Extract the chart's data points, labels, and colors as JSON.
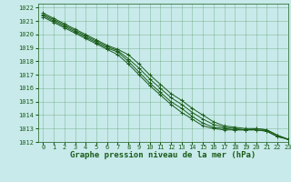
{
  "title": "Graphe pression niveau de la mer (hPa)",
  "bg_color": "#c8eaea",
  "grid_color": "#5a9a6a",
  "line_color": "#1a5c1a",
  "marker": "+",
  "xlim": [
    -0.5,
    23
  ],
  "ylim": [
    1012,
    1022.3
  ],
  "xticks": [
    0,
    1,
    2,
    3,
    4,
    5,
    6,
    7,
    8,
    9,
    10,
    11,
    12,
    13,
    14,
    15,
    16,
    17,
    18,
    19,
    20,
    21,
    22,
    23
  ],
  "yticks": [
    1012,
    1013,
    1014,
    1015,
    1016,
    1017,
    1018,
    1019,
    1020,
    1021,
    1022
  ],
  "series": [
    [
      1021.3,
      1020.9,
      1020.5,
      1020.1,
      1019.7,
      1019.3,
      1018.9,
      1018.5,
      1017.8,
      1017.0,
      1016.2,
      1015.5,
      1014.8,
      1014.2,
      1013.7,
      1013.2,
      1013.0,
      1012.9,
      1012.9,
      1012.9,
      1012.9,
      1012.8,
      1012.4,
      1012.2
    ],
    [
      1021.4,
      1021.0,
      1020.6,
      1020.2,
      1019.8,
      1019.4,
      1019.0,
      1018.7,
      1018.0,
      1017.2,
      1016.4,
      1015.7,
      1015.0,
      1014.5,
      1013.9,
      1013.4,
      1013.1,
      1013.0,
      1012.9,
      1012.9,
      1012.9,
      1012.8,
      1012.4,
      1012.2
    ],
    [
      1021.5,
      1021.1,
      1020.7,
      1020.3,
      1019.9,
      1019.5,
      1019.1,
      1018.8,
      1018.2,
      1017.5,
      1016.7,
      1016.0,
      1015.3,
      1014.8,
      1014.2,
      1013.7,
      1013.3,
      1013.1,
      1013.0,
      1012.9,
      1013.0,
      1012.9,
      1012.5,
      1012.2
    ],
    [
      1021.6,
      1021.2,
      1020.8,
      1020.4,
      1020.0,
      1019.6,
      1019.2,
      1018.9,
      1018.5,
      1017.8,
      1017.0,
      1016.3,
      1015.6,
      1015.1,
      1014.5,
      1014.0,
      1013.5,
      1013.2,
      1013.1,
      1013.0,
      1013.0,
      1012.9,
      1012.5,
      1012.2
    ]
  ],
  "tick_fontsize": 5,
  "xlabel_fontsize": 6.5
}
